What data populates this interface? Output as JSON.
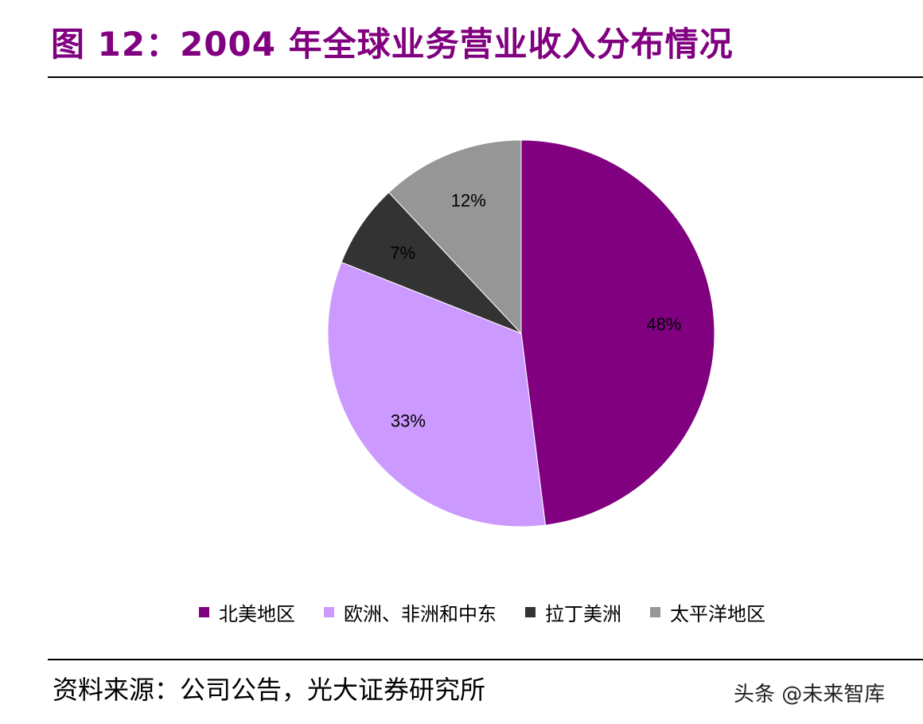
{
  "title": "图 12：2004 年全球业务营业收入分布情况",
  "source": "资料来源：公司公告，光大证券研究所",
  "watermark": "头条 @未来智库",
  "colors": {
    "title": "#800080",
    "north_america": "#800080",
    "emea": "#CC99FF",
    "latin_america": "#333333",
    "asia_pacific": "#969696"
  },
  "chart_data": {
    "type": "pie",
    "title": "",
    "start": "12 o'clock",
    "direction": "clockwise",
    "legend_position": "bottom",
    "slices": [
      {
        "name": "北美地区",
        "value": 48,
        "label": "48%",
        "color": "#800080"
      },
      {
        "name": "欧洲、非洲和中东",
        "value": 33,
        "label": "33%",
        "color": "#CC99FF"
      },
      {
        "name": "拉丁美洲",
        "value": 7,
        "label": "7%",
        "color": "#333333"
      },
      {
        "name": "太平洋地区",
        "value": 12,
        "label": "12%",
        "color": "#969696"
      }
    ]
  }
}
